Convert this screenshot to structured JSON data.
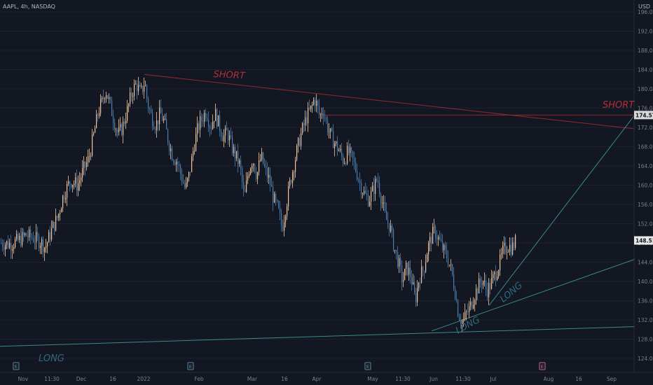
{
  "header": {
    "symbol": "AAPL, 4h, NASDAQ",
    "currency": "USD"
  },
  "annotations": {
    "short_top": "SHORT",
    "short_right": "SHORT",
    "long_bottom_left": "LONG",
    "long_lower": "LONG",
    "long_upper": "LONG"
  },
  "colors": {
    "background": "#131722",
    "bull_candle": "#f2c7a0",
    "bear_candle": "#4a7fb0",
    "short_line": "#8f2a33",
    "long_line": "#3b8c88",
    "axis_text": "#7b7f8a"
  },
  "chart_data": {
    "type": "candlestick",
    "symbol": "AAPL",
    "interval": "4h",
    "exchange": "NASDAQ",
    "currency": "USD",
    "ylim": [
      121,
      198
    ],
    "y_ticks": [
      196,
      192,
      188,
      184,
      180,
      176,
      172,
      168,
      164,
      160,
      156,
      152,
      148,
      144,
      140,
      136,
      132,
      128,
      124
    ],
    "y_tick_labels": [
      "196.00",
      "192.00",
      "188.00",
      "184.00",
      "180.00",
      "176.00",
      "172.00",
      "168.00",
      "164.00",
      "160.00",
      "156.00",
      "152.00",
      "148.00",
      "144.00",
      "140.00",
      "136.00",
      "132.00",
      "128.00",
      "124.00"
    ],
    "x_tick_labels": [
      "Nov",
      "11:30",
      "Dec",
      "16",
      "2022",
      "Feb",
      "Mar",
      "16",
      "Apr",
      "May",
      "11:30",
      "Jun",
      "11:30",
      "Jul",
      "Aug",
      "16",
      "Sep"
    ],
    "price_labels": [
      {
        "label": "174.57",
        "value": 174.57,
        "style": "highlight"
      },
      {
        "label": "148.51",
        "value": 148.51,
        "style": "current"
      }
    ],
    "horizontal_level": 174.57,
    "close_path": [
      [
        0,
        148.0
      ],
      [
        14,
        147.8
      ],
      [
        26,
        148.5
      ],
      [
        36,
        149.6
      ],
      [
        48,
        149.0
      ],
      [
        58,
        148.2
      ],
      [
        64,
        147.0
      ],
      [
        74,
        151.0
      ],
      [
        82,
        153.5
      ],
      [
        90,
        158.0
      ],
      [
        100,
        161.0
      ],
      [
        110,
        160.0
      ],
      [
        118,
        163.0
      ],
      [
        126,
        165.5
      ],
      [
        134,
        171.0
      ],
      [
        140,
        175.5
      ],
      [
        146,
        177.5
      ],
      [
        150,
        180.0
      ],
      [
        156,
        177.0
      ],
      [
        162,
        173.5
      ],
      [
        168,
        170.5
      ],
      [
        174,
        172.0
      ],
      [
        182,
        176.0
      ],
      [
        188,
        179.5
      ],
      [
        194,
        181.0
      ],
      [
        200,
        179.0
      ],
      [
        206,
        181.5
      ],
      [
        210,
        177.0
      ],
      [
        216,
        174.0
      ],
      [
        222,
        172.5
      ],
      [
        228,
        175.0
      ],
      [
        234,
        173.0
      ],
      [
        240,
        169.0
      ],
      [
        246,
        166.0
      ],
      [
        252,
        165.0
      ],
      [
        258,
        162.0
      ],
      [
        264,
        159.0
      ],
      [
        270,
        162.5
      ],
      [
        276,
        168.0
      ],
      [
        282,
        172.0
      ],
      [
        288,
        174.0
      ],
      [
        294,
        175.5
      ],
      [
        300,
        172.0
      ],
      [
        306,
        175.0
      ],
      [
        312,
        172.5
      ],
      [
        318,
        170.0
      ],
      [
        324,
        171.0
      ],
      [
        330,
        168.0
      ],
      [
        336,
        166.0
      ],
      [
        342,
        164.0
      ],
      [
        348,
        157.0
      ],
      [
        354,
        163.0
      ],
      [
        360,
        165.5
      ],
      [
        366,
        162.0
      ],
      [
        372,
        166.0
      ],
      [
        378,
        163.0
      ],
      [
        384,
        161.0
      ],
      [
        390,
        157.0
      ],
      [
        396,
        155.0
      ],
      [
        402,
        151.0
      ],
      [
        408,
        156.0
      ],
      [
        414,
        161.0
      ],
      [
        420,
        165.0
      ],
      [
        426,
        169.0
      ],
      [
        432,
        172.0
      ],
      [
        438,
        174.5
      ],
      [
        444,
        176.0
      ],
      [
        448,
        178.0
      ],
      [
        452,
        176.5
      ],
      [
        456,
        174.0
      ],
      [
        460,
        176.0
      ],
      [
        466,
        172.5
      ],
      [
        472,
        170.0
      ],
      [
        478,
        168.5
      ],
      [
        484,
        167.0
      ],
      [
        490,
        165.0
      ],
      [
        496,
        167.0
      ],
      [
        502,
        165.5
      ],
      [
        508,
        163.0
      ],
      [
        514,
        160.0
      ],
      [
        520,
        158.0
      ],
      [
        526,
        157.0
      ],
      [
        532,
        159.0
      ],
      [
        538,
        161.5
      ],
      [
        544,
        157.0
      ],
      [
        550,
        153.0
      ],
      [
        556,
        151.5
      ],
      [
        562,
        147.0
      ],
      [
        568,
        144.0
      ],
      [
        574,
        140.0
      ],
      [
        580,
        143.0
      ],
      [
        586,
        141.0
      ],
      [
        592,
        136.0
      ],
      [
        598,
        141.0
      ],
      [
        604,
        142.5
      ],
      [
        610,
        147.0
      ],
      [
        616,
        149.5
      ],
      [
        620,
        150.5
      ],
      [
        626,
        148.5
      ],
      [
        632,
        146.5
      ],
      [
        638,
        145.0
      ],
      [
        644,
        142.0
      ],
      [
        650,
        137.0
      ],
      [
        654,
        133.0
      ],
      [
        660,
        131.5
      ],
      [
        664,
        133.0
      ],
      [
        670,
        134.5
      ],
      [
        676,
        137.0
      ],
      [
        682,
        139.0
      ],
      [
        688,
        140.5
      ],
      [
        694,
        138.0
      ],
      [
        700,
        139.5
      ],
      [
        706,
        141.5
      ],
      [
        712,
        143.5
      ],
      [
        718,
        146.5
      ],
      [
        724,
        147.5
      ],
      [
        730,
        147.0
      ],
      [
        736,
        148.5
      ]
    ],
    "trendlines": [
      {
        "label": "SHORT",
        "from": {
          "bar_x": 206,
          "value": 183.0
        },
        "to": {
          "bar_x": 906,
          "value": 171.7
        }
      },
      {
        "label": "LONG",
        "from": {
          "bar_x": 0,
          "value": 126.5
        },
        "to": {
          "bar_x": 906,
          "value": 130.6
        }
      },
      {
        "label": "LONG",
        "from": {
          "bar_x": 616,
          "value": 129.7
        },
        "to": {
          "bar_x": 906,
          "value": 144.6
        }
      },
      {
        "label": "LONG",
        "from": {
          "bar_x": 698,
          "value": 135.0
        },
        "to": {
          "bar_x": 906,
          "value": 174.6
        }
      }
    ],
    "event_markers": [
      {
        "label": "E",
        "at_x_label": "Nov"
      },
      {
        "label": "E",
        "at_x_label": "Feb"
      },
      {
        "label": "E",
        "at_x_label": "May"
      },
      {
        "label": "E",
        "at_x_label": "Aug"
      }
    ]
  }
}
